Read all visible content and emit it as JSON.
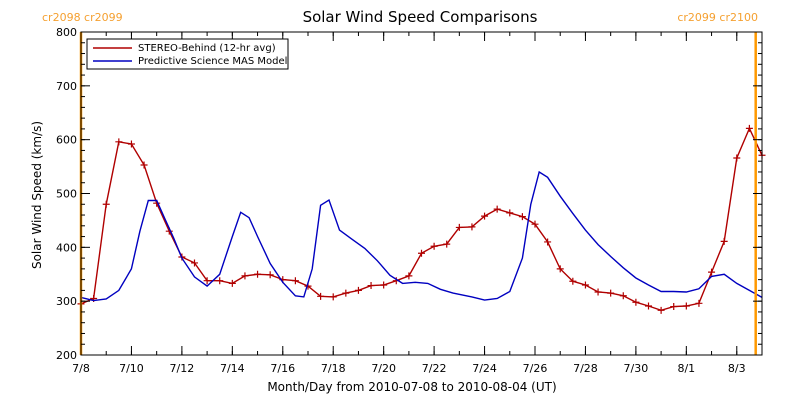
{
  "chart_data": {
    "type": "line",
    "title": "Solar Wind Speed Comparisons",
    "xlabel": "Month/Day from 2010-07-08 to 2010-08-04 (UT)",
    "ylabel": "Solar Wind Speed (km/s)",
    "xlim": [
      "2010-07-08",
      "2010-08-04"
    ],
    "ylim": [
      200,
      800
    ],
    "x_ticks": [
      {
        "date": "2010-07-08",
        "label": "7/8"
      },
      {
        "date": "2010-07-10",
        "label": "7/10"
      },
      {
        "date": "2010-07-12",
        "label": "7/12"
      },
      {
        "date": "2010-07-14",
        "label": "7/14"
      },
      {
        "date": "2010-07-16",
        "label": "7/16"
      },
      {
        "date": "2010-07-18",
        "label": "7/18"
      },
      {
        "date": "2010-07-20",
        "label": "7/20"
      },
      {
        "date": "2010-07-22",
        "label": "7/22"
      },
      {
        "date": "2010-07-24",
        "label": "7/24"
      },
      {
        "date": "2010-07-26",
        "label": "7/26"
      },
      {
        "date": "2010-07-28",
        "label": "7/28"
      },
      {
        "date": "2010-07-30",
        "label": "7/30"
      },
      {
        "date": "2010-08-01",
        "label": "8/1"
      },
      {
        "date": "2010-08-03",
        "label": "8/3"
      }
    ],
    "y_ticks": [
      200,
      300,
      400,
      500,
      600,
      700,
      800
    ],
    "grid": false,
    "legend": "top-left",
    "rotation_markers": [
      {
        "date": "2010-07-08",
        "label": "cr2098 cr2099",
        "color": "#ff9900"
      },
      {
        "date": "2010-08-03T18:00",
        "label": "cr2099 cr2100",
        "color": "#ff9900"
      }
    ],
    "series": [
      {
        "name": "STEREO-Behind (12-hr avg)",
        "color": "#b00000",
        "marker": "+",
        "points": [
          [
            "2010-07-08T00:00",
            295
          ],
          [
            "2010-07-08T12:00",
            305
          ],
          [
            "2010-07-09T00:00",
            480
          ],
          [
            "2010-07-09T12:00",
            596
          ],
          [
            "2010-07-10T00:00",
            592
          ],
          [
            "2010-07-10T12:00",
            553
          ],
          [
            "2010-07-11T00:00",
            482
          ],
          [
            "2010-07-11T12:00",
            430
          ],
          [
            "2010-07-12T00:00",
            382
          ],
          [
            "2010-07-12T12:00",
            371
          ],
          [
            "2010-07-13T00:00",
            338
          ],
          [
            "2010-07-13T12:00",
            338
          ],
          [
            "2010-07-14T00:00",
            333
          ],
          [
            "2010-07-14T12:00",
            347
          ],
          [
            "2010-07-15T00:00",
            350
          ],
          [
            "2010-07-15T12:00",
            349
          ],
          [
            "2010-07-16T00:00",
            340
          ],
          [
            "2010-07-16T12:00",
            338
          ],
          [
            "2010-07-17T00:00",
            328
          ],
          [
            "2010-07-17T12:00",
            309
          ],
          [
            "2010-07-18T00:00",
            308
          ],
          [
            "2010-07-18T12:00",
            315
          ],
          [
            "2010-07-19T00:00",
            320
          ],
          [
            "2010-07-19T12:00",
            329
          ],
          [
            "2010-07-20T00:00",
            330
          ],
          [
            "2010-07-20T12:00",
            338
          ],
          [
            "2010-07-21T00:00",
            347
          ],
          [
            "2010-07-21T12:00",
            389
          ],
          [
            "2010-07-22T00:00",
            402
          ],
          [
            "2010-07-22T12:00",
            406
          ],
          [
            "2010-07-23T00:00",
            437
          ],
          [
            "2010-07-23T12:00",
            438
          ],
          [
            "2010-07-24T00:00",
            458
          ],
          [
            "2010-07-24T12:00",
            471
          ],
          [
            "2010-07-25T00:00",
            464
          ],
          [
            "2010-07-25T12:00",
            457
          ],
          [
            "2010-07-26T00:00",
            443
          ],
          [
            "2010-07-26T12:00",
            410
          ],
          [
            "2010-07-27T00:00",
            360
          ],
          [
            "2010-07-27T12:00",
            337
          ],
          [
            "2010-07-28T00:00",
            330
          ],
          [
            "2010-07-28T12:00",
            317
          ],
          [
            "2010-07-29T00:00",
            315
          ],
          [
            "2010-07-29T12:00",
            310
          ],
          [
            "2010-07-30T00:00",
            298
          ],
          [
            "2010-07-30T12:00",
            291
          ],
          [
            "2010-07-31T00:00",
            283
          ],
          [
            "2010-07-31T12:00",
            290
          ],
          [
            "2010-08-01T00:00",
            291
          ],
          [
            "2010-08-01T12:00",
            296
          ],
          [
            "2010-08-02T00:00",
            354
          ],
          [
            "2010-08-02T12:00",
            411
          ],
          [
            "2010-08-03T00:00",
            566
          ],
          [
            "2010-08-03T12:00",
            621
          ],
          [
            "2010-08-04T00:00",
            571
          ]
        ]
      },
      {
        "name": "Predictive Science MAS Model",
        "color": "#0000c0",
        "marker": "none",
        "points": [
          [
            "2010-07-08T00:00",
            307
          ],
          [
            "2010-07-08T12:00",
            301
          ],
          [
            "2010-07-09T00:00",
            304
          ],
          [
            "2010-07-09T12:00",
            320
          ],
          [
            "2010-07-10T00:00",
            360
          ],
          [
            "2010-07-10T08:00",
            430
          ],
          [
            "2010-07-10T16:00",
            487
          ],
          [
            "2010-07-11T00:00",
            487
          ],
          [
            "2010-07-11T08:00",
            452
          ],
          [
            "2010-07-11T16:00",
            418
          ],
          [
            "2010-07-12T00:00",
            380
          ],
          [
            "2010-07-12T12:00",
            345
          ],
          [
            "2010-07-13T00:00",
            328
          ],
          [
            "2010-07-13T12:00",
            350
          ],
          [
            "2010-07-14T00:00",
            420
          ],
          [
            "2010-07-14T08:00",
            465
          ],
          [
            "2010-07-14T16:00",
            455
          ],
          [
            "2010-07-15T00:00",
            420
          ],
          [
            "2010-07-15T12:00",
            370
          ],
          [
            "2010-07-16T00:00",
            335
          ],
          [
            "2010-07-16T12:00",
            310
          ],
          [
            "2010-07-16T20:00",
            308
          ],
          [
            "2010-07-17T04:00",
            360
          ],
          [
            "2010-07-17T12:00",
            478
          ],
          [
            "2010-07-17T20:00",
            488
          ],
          [
            "2010-07-18T06:00",
            432
          ],
          [
            "2010-07-18T18:00",
            415
          ],
          [
            "2010-07-19T06:00",
            398
          ],
          [
            "2010-07-19T18:00",
            375
          ],
          [
            "2010-07-20T06:00",
            348
          ],
          [
            "2010-07-20T18:00",
            333
          ],
          [
            "2010-07-21T06:00",
            335
          ],
          [
            "2010-07-21T18:00",
            333
          ],
          [
            "2010-07-22T06:00",
            322
          ],
          [
            "2010-07-22T18:00",
            315
          ],
          [
            "2010-07-23T12:00",
            308
          ],
          [
            "2010-07-24T00:00",
            302
          ],
          [
            "2010-07-24T12:00",
            305
          ],
          [
            "2010-07-25T00:00",
            318
          ],
          [
            "2010-07-25T12:00",
            380
          ],
          [
            "2010-07-25T20:00",
            480
          ],
          [
            "2010-07-26T04:00",
            540
          ],
          [
            "2010-07-26T12:00",
            530
          ],
          [
            "2010-07-27T00:00",
            495
          ],
          [
            "2010-07-27T12:00",
            463
          ],
          [
            "2010-07-28T00:00",
            432
          ],
          [
            "2010-07-28T12:00",
            405
          ],
          [
            "2010-07-29T00:00",
            383
          ],
          [
            "2010-07-29T12:00",
            362
          ],
          [
            "2010-07-30T00:00",
            343
          ],
          [
            "2010-07-30T12:00",
            330
          ],
          [
            "2010-07-31T00:00",
            318
          ],
          [
            "2010-07-31T12:00",
            318
          ],
          [
            "2010-08-01T00:00",
            317
          ],
          [
            "2010-08-01T12:00",
            323
          ],
          [
            "2010-08-02T00:00",
            346
          ],
          [
            "2010-08-02T12:00",
            350
          ],
          [
            "2010-08-03T00:00",
            333
          ],
          [
            "2010-08-03T12:00",
            320
          ],
          [
            "2010-08-04T00:00",
            307
          ]
        ]
      }
    ]
  }
}
